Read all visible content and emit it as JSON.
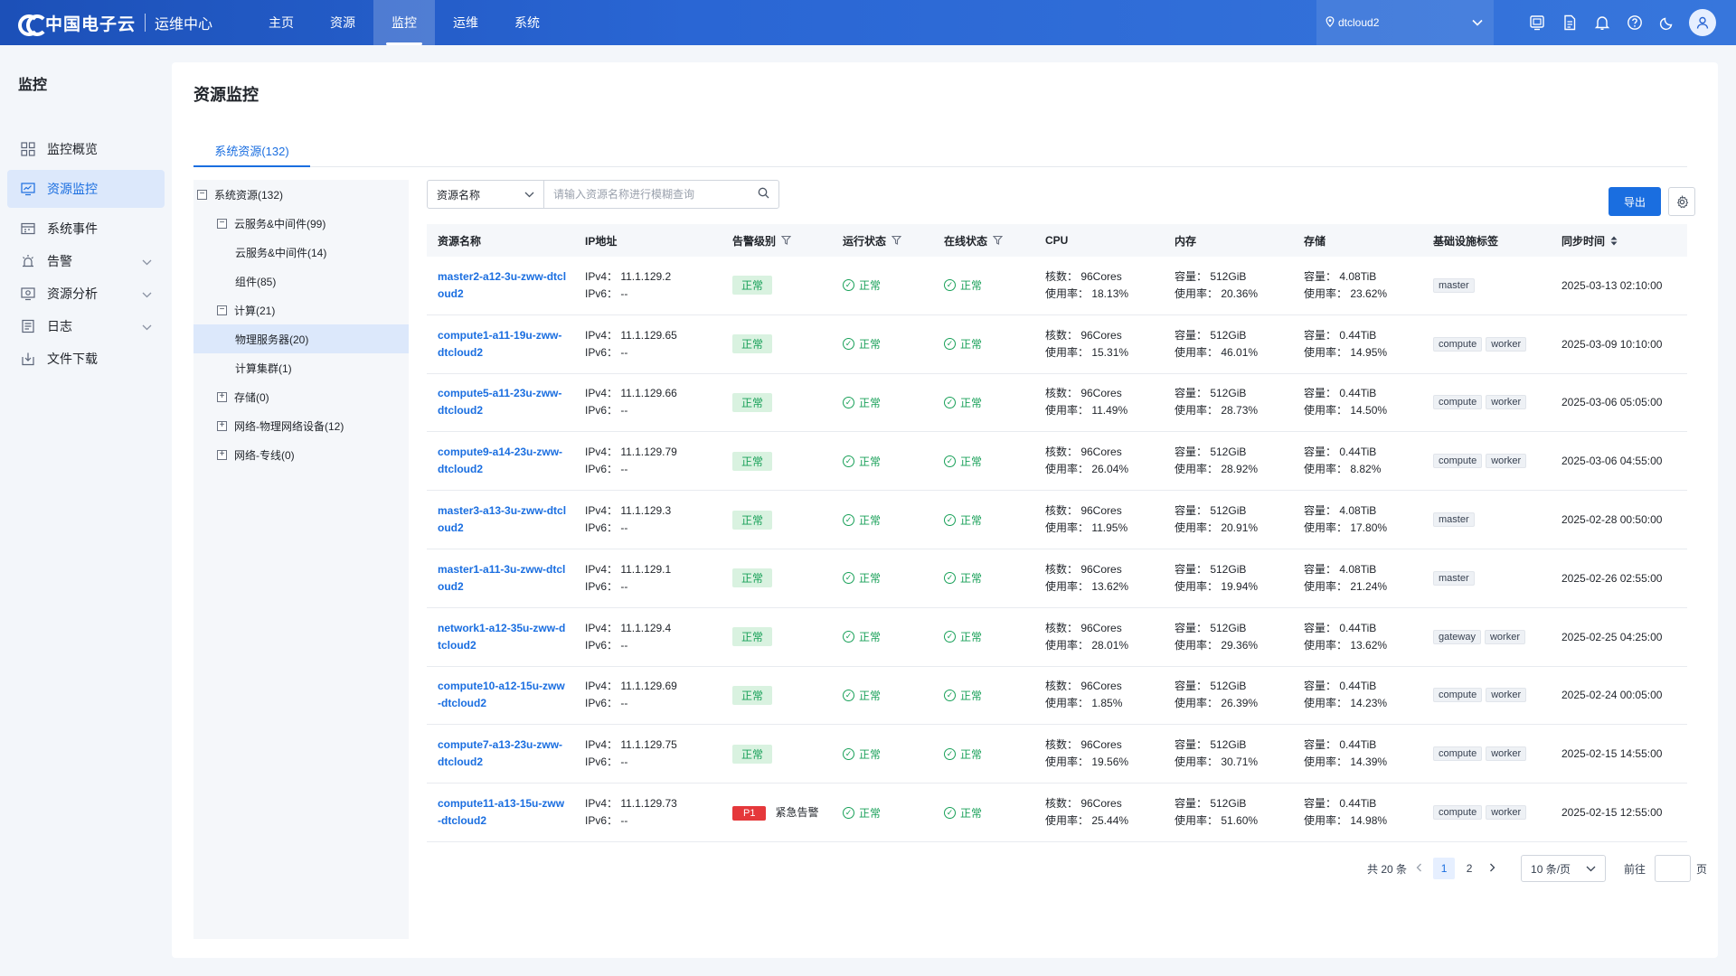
{
  "brand": {
    "name": "中国电子云",
    "subtitle": "运维中心"
  },
  "topnav": [
    {
      "label": "主页",
      "active": false
    },
    {
      "label": "资源",
      "active": false
    },
    {
      "label": "监控",
      "active": true
    },
    {
      "label": "运维",
      "active": false
    },
    {
      "label": "系统",
      "active": false
    }
  ],
  "region": {
    "value": "dtcloud2"
  },
  "sidebar": {
    "title": "监控",
    "items": [
      {
        "label": "监控概览",
        "icon": "grid-icon",
        "active": false,
        "expandable": false
      },
      {
        "label": "资源监控",
        "icon": "monitor-chart-icon",
        "active": true,
        "expandable": false
      },
      {
        "label": "系统事件",
        "icon": "event-icon",
        "active": false,
        "expandable": false
      },
      {
        "label": "告警",
        "icon": "alarm-icon",
        "active": false,
        "expandable": true
      },
      {
        "label": "资源分析",
        "icon": "analysis-icon",
        "active": false,
        "expandable": true
      },
      {
        "label": "日志",
        "icon": "log-icon",
        "active": false,
        "expandable": true
      },
      {
        "label": "文件下载",
        "icon": "download-icon",
        "active": false,
        "expandable": false
      }
    ]
  },
  "page": {
    "title": "资源监控",
    "tab": "系统资源(132)"
  },
  "tree": [
    {
      "label": "系统资源(132)",
      "box": "−",
      "level": 0
    },
    {
      "label": "云服务&中间件(99)",
      "box": "−",
      "level": 1
    },
    {
      "label": "云服务&中间件(14)",
      "box": "",
      "level": 2
    },
    {
      "label": "组件(85)",
      "box": "",
      "level": 2
    },
    {
      "label": "计算(21)",
      "box": "−",
      "level": 1
    },
    {
      "label": "物理服务器(20)",
      "box": "",
      "level": 2,
      "selected": true
    },
    {
      "label": "计算集群(1)",
      "box": "",
      "level": 2
    },
    {
      "label": "存储(0)",
      "box": "+",
      "level": 1
    },
    {
      "label": "网络-物理网络设备(12)",
      "box": "+",
      "level": 1
    },
    {
      "label": "网络-专线(0)",
      "box": "+",
      "level": 1
    }
  ],
  "search": {
    "field": "资源名称",
    "placeholder": "请输入资源名称进行模糊查询"
  },
  "export_label": "导出",
  "table": {
    "headers": [
      "资源名称",
      "IP地址",
      "告警级别",
      "运行状态",
      "在线状态",
      "CPU",
      "内存",
      "存储",
      "基础设施标签",
      "同步时间"
    ],
    "rows": [
      {
        "name": "master2-a12-3u-zww-dtcloud2",
        "ipv4": "IPv4：  11.1.129.2",
        "ipv6": "IPv6：  --",
        "alert": "正常",
        "alert_p1": false,
        "run": "正常",
        "online": "正常",
        "cpu_cores": "核数：  96Cores",
        "cpu_usage": "使用率：  18.13%",
        "mem_cap": "容量：  512GiB",
        "mem_usage": "使用率：  20.36%",
        "sto_cap": "容量：  4.08TiB",
        "sto_usage": "使用率：  23.62%",
        "tags": [
          "master"
        ],
        "time": "2025-03-13 02:10:00"
      },
      {
        "name": "compute1-a11-19u-zww-dtcloud2",
        "ipv4": "IPv4：  11.1.129.65",
        "ipv6": "IPv6：  --",
        "alert": "正常",
        "alert_p1": false,
        "run": "正常",
        "online": "正常",
        "cpu_cores": "核数：  96Cores",
        "cpu_usage": "使用率：  15.31%",
        "mem_cap": "容量：  512GiB",
        "mem_usage": "使用率：  46.01%",
        "sto_cap": "容量：  0.44TiB",
        "sto_usage": "使用率：  14.95%",
        "tags": [
          "compute",
          "worker"
        ],
        "time": "2025-03-09 10:10:00"
      },
      {
        "name": "compute5-a11-23u-zww-dtcloud2",
        "ipv4": "IPv4：  11.1.129.66",
        "ipv6": "IPv6：  --",
        "alert": "正常",
        "alert_p1": false,
        "run": "正常",
        "online": "正常",
        "cpu_cores": "核数：  96Cores",
        "cpu_usage": "使用率：  11.49%",
        "mem_cap": "容量：  512GiB",
        "mem_usage": "使用率：  28.73%",
        "sto_cap": "容量：  0.44TiB",
        "sto_usage": "使用率：  14.50%",
        "tags": [
          "compute",
          "worker"
        ],
        "time": "2025-03-06 05:05:00"
      },
      {
        "name": "compute9-a14-23u-zww-dtcloud2",
        "ipv4": "IPv4：  11.1.129.79",
        "ipv6": "IPv6：  --",
        "alert": "正常",
        "alert_p1": false,
        "run": "正常",
        "online": "正常",
        "cpu_cores": "核数：  96Cores",
        "cpu_usage": "使用率：  26.04%",
        "mem_cap": "容量：  512GiB",
        "mem_usage": "使用率：  28.92%",
        "sto_cap": "容量：  0.44TiB",
        "sto_usage": "使用率：  8.82%",
        "tags": [
          "compute",
          "worker"
        ],
        "time": "2025-03-06 04:55:00"
      },
      {
        "name": "master3-a13-3u-zww-dtcloud2",
        "ipv4": "IPv4：  11.1.129.3",
        "ipv6": "IPv6：  --",
        "alert": "正常",
        "alert_p1": false,
        "run": "正常",
        "online": "正常",
        "cpu_cores": "核数：  96Cores",
        "cpu_usage": "使用率：  11.95%",
        "mem_cap": "容量：  512GiB",
        "mem_usage": "使用率：  20.91%",
        "sto_cap": "容量：  4.08TiB",
        "sto_usage": "使用率：  17.80%",
        "tags": [
          "master"
        ],
        "time": "2025-02-28 00:50:00"
      },
      {
        "name": "master1-a11-3u-zww-dtcloud2",
        "ipv4": "IPv4：  11.1.129.1",
        "ipv6": "IPv6：  --",
        "alert": "正常",
        "alert_p1": false,
        "run": "正常",
        "online": "正常",
        "cpu_cores": "核数：  96Cores",
        "cpu_usage": "使用率：  13.62%",
        "mem_cap": "容量：  512GiB",
        "mem_usage": "使用率：  19.94%",
        "sto_cap": "容量：  4.08TiB",
        "sto_usage": "使用率：  21.24%",
        "tags": [
          "master"
        ],
        "time": "2025-02-26 02:55:00"
      },
      {
        "name": "network1-a12-35u-zww-dtcloud2",
        "ipv4": "IPv4：  11.1.129.4",
        "ipv6": "IPv6：  --",
        "alert": "正常",
        "alert_p1": false,
        "run": "正常",
        "online": "正常",
        "cpu_cores": "核数：  96Cores",
        "cpu_usage": "使用率：  28.01%",
        "mem_cap": "容量：  512GiB",
        "mem_usage": "使用率：  29.36%",
        "sto_cap": "容量：  0.44TiB",
        "sto_usage": "使用率：  13.62%",
        "tags": [
          "gateway",
          "worker"
        ],
        "time": "2025-02-25 04:25:00"
      },
      {
        "name": "compute10-a12-15u-zww-dtcloud2",
        "ipv4": "IPv4：  11.1.129.69",
        "ipv6": "IPv6：  --",
        "alert": "正常",
        "alert_p1": false,
        "run": "正常",
        "online": "正常",
        "cpu_cores": "核数：  96Cores",
        "cpu_usage": "使用率：  1.85%",
        "mem_cap": "容量：  512GiB",
        "mem_usage": "使用率：  26.39%",
        "sto_cap": "容量：  0.44TiB",
        "sto_usage": "使用率：  14.23%",
        "tags": [
          "compute",
          "worker"
        ],
        "time": "2025-02-24 00:05:00"
      },
      {
        "name": "compute7-a13-23u-zww-dtcloud2",
        "ipv4": "IPv4：  11.1.129.75",
        "ipv6": "IPv6：  --",
        "alert": "正常",
        "alert_p1": false,
        "run": "正常",
        "online": "正常",
        "cpu_cores": "核数：  96Cores",
        "cpu_usage": "使用率：  19.56%",
        "mem_cap": "容量：  512GiB",
        "mem_usage": "使用率：  30.71%",
        "sto_cap": "容量：  0.44TiB",
        "sto_usage": "使用率：  14.39%",
        "tags": [
          "compute",
          "worker"
        ],
        "time": "2025-02-15 14:55:00"
      },
      {
        "name": "compute11-a13-15u-zww-dtcloud2",
        "ipv4": "IPv4：  11.1.129.73",
        "ipv6": "IPv6：  --",
        "alert": "紧急告警",
        "alert_p1": true,
        "alert_level": "P1",
        "run": "正常",
        "online": "正常",
        "cpu_cores": "核数：  96Cores",
        "cpu_usage": "使用率：  25.44%",
        "mem_cap": "容量：  512GiB",
        "mem_usage": "使用率：  51.60%",
        "sto_cap": "容量：  0.44TiB",
        "sto_usage": "使用率：  14.98%",
        "tags": [
          "compute",
          "worker"
        ],
        "time": "2025-02-15 12:55:00"
      }
    ]
  },
  "pagination": {
    "total": "共 20 条",
    "pages": [
      "1",
      "2"
    ],
    "current": "1",
    "page_size": "10 条/页",
    "goto_label": "前往",
    "goto_suffix": "页"
  },
  "colors": {
    "primary": "#1a6ee0",
    "success": "#18a058",
    "danger": "#e5383b",
    "topbar": "#2a66d4"
  }
}
